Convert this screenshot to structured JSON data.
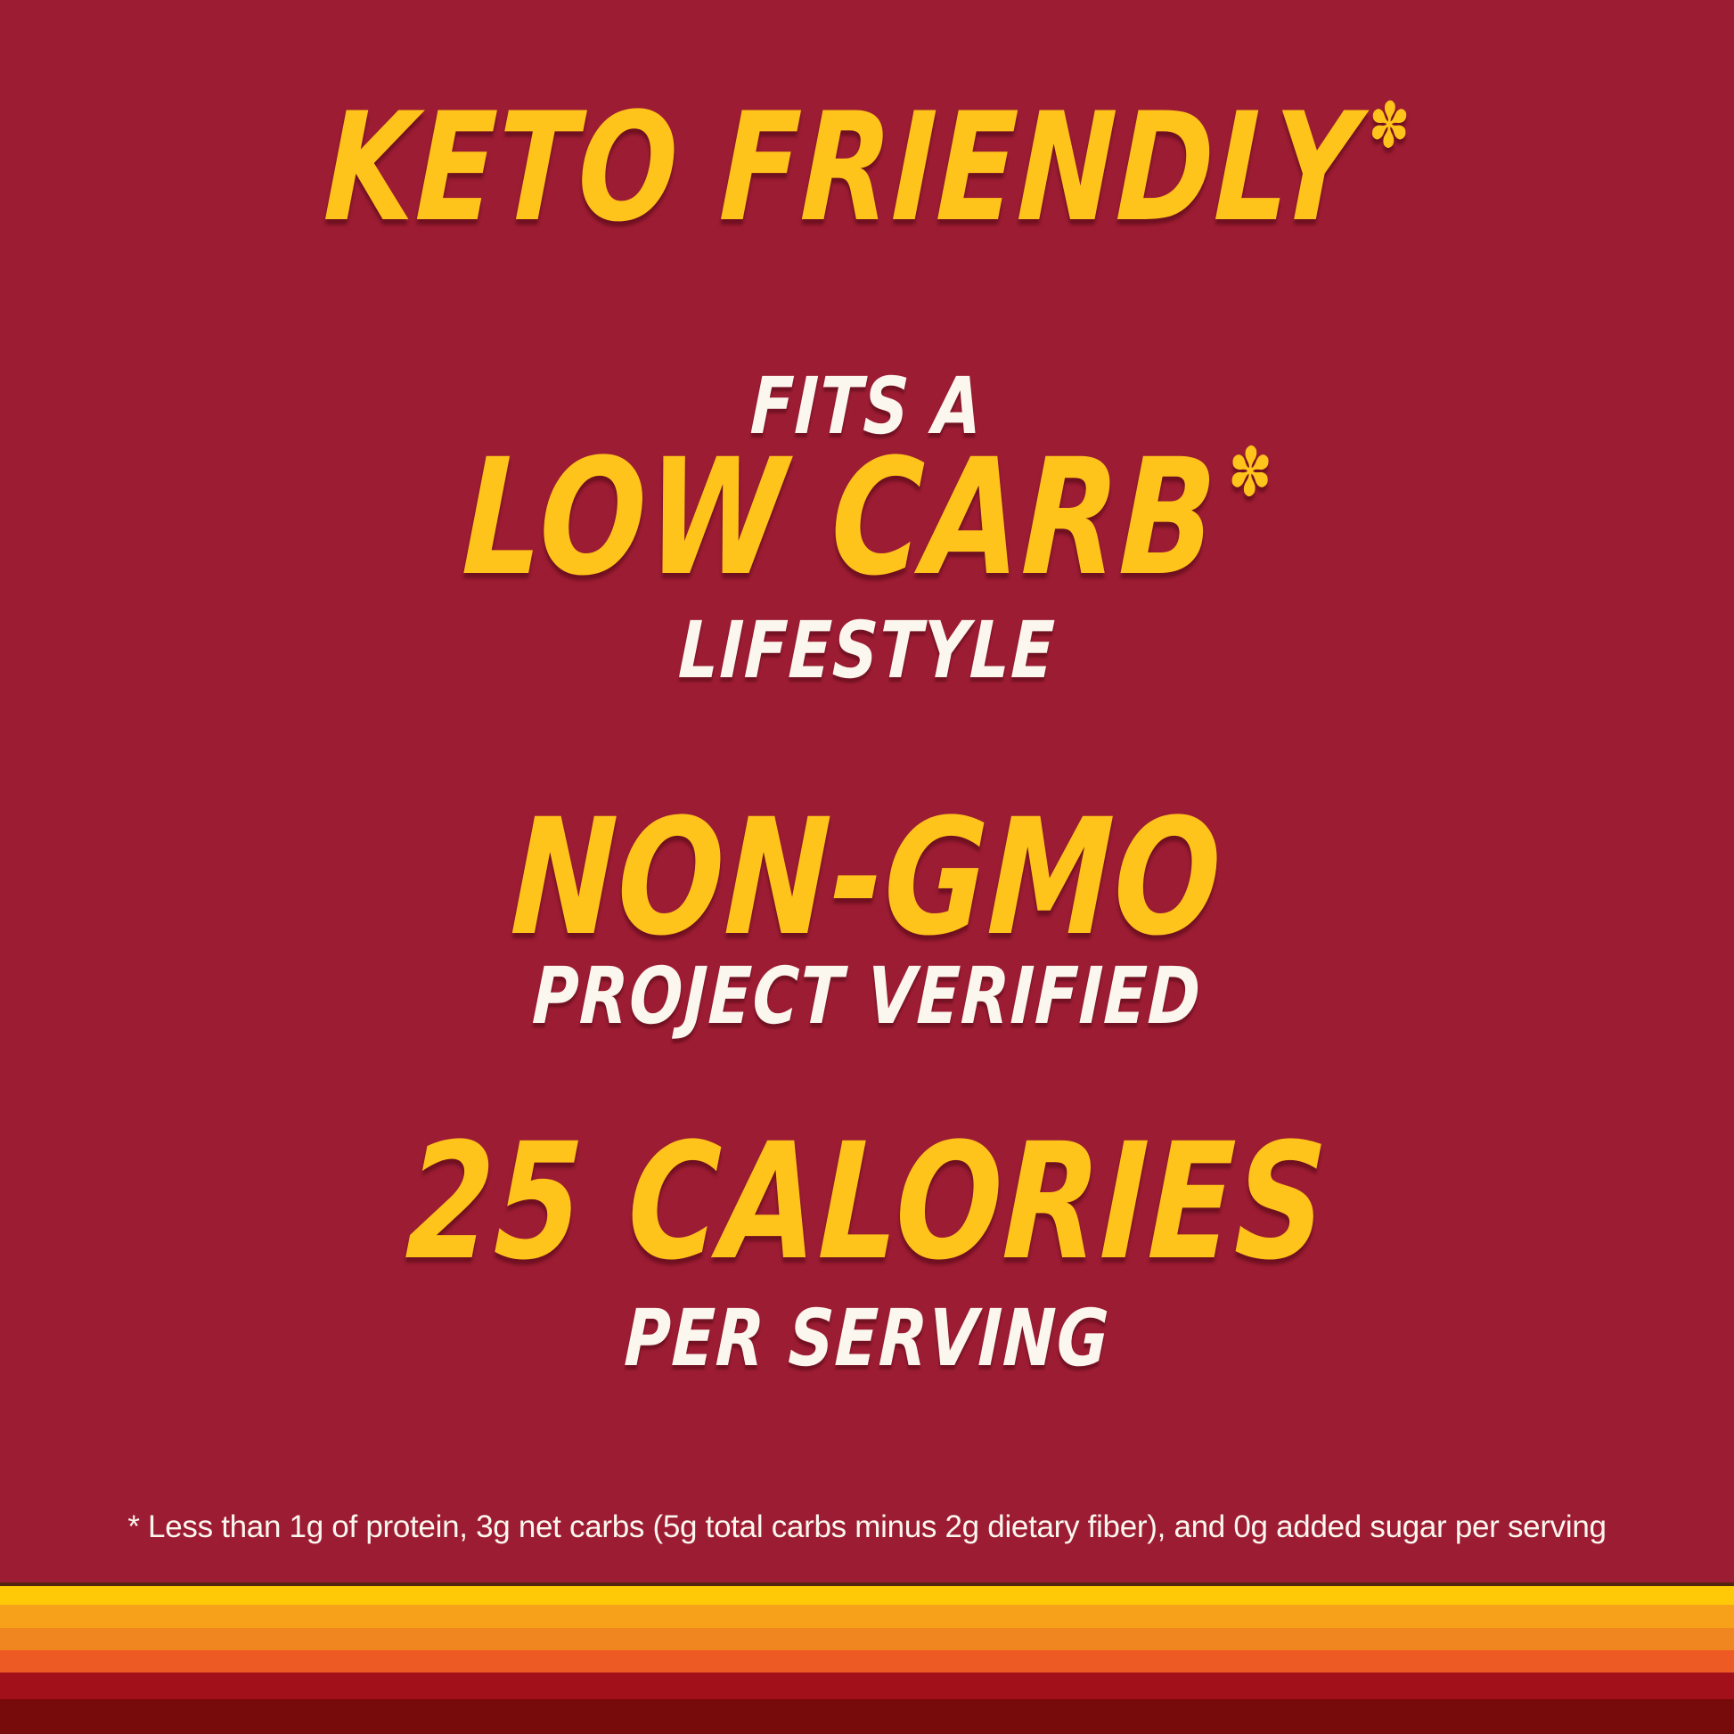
{
  "canvas": {
    "background": "#9C1C33",
    "accent_yellow": "#FFC41B",
    "text_white": "#FBF6EE"
  },
  "claims": {
    "keto": {
      "headline": "KETO FRIENDLY",
      "asterisk_mark": "✽"
    },
    "low_carb": {
      "lead_in": "FITS A",
      "headline": "LOW CARB",
      "asterisk_mark": "✽",
      "tagline": "LIFESTYLE"
    },
    "non_gmo": {
      "headline": "NON-GMO",
      "tagline": "PROJECT VERIFIED"
    },
    "calories": {
      "headline": "25 CALORIES",
      "tagline": "PER SERVING"
    }
  },
  "footnote": "* Less than 1g of protein, 3g net carbs (5g total carbs minus 2g dietary fiber), and 0g added sugar per serving",
  "footer_stripes": [
    {
      "name": "divider-stripe",
      "color": "#54250E",
      "height": 4
    },
    {
      "name": "yellow-stripe",
      "color": "#FFC907",
      "height": 21
    },
    {
      "name": "amber-stripe",
      "color": "#F7A11B",
      "height": 26
    },
    {
      "name": "orange-stripe",
      "color": "#F0861F",
      "height": 25
    },
    {
      "name": "vermilion-stripe",
      "color": "#EE5A24",
      "height": 25
    },
    {
      "name": "crimson-stripe",
      "color": "#A21019",
      "height": 30
    },
    {
      "name": "maroon-stripe",
      "color": "#770A0B",
      "height": 39
    }
  ]
}
